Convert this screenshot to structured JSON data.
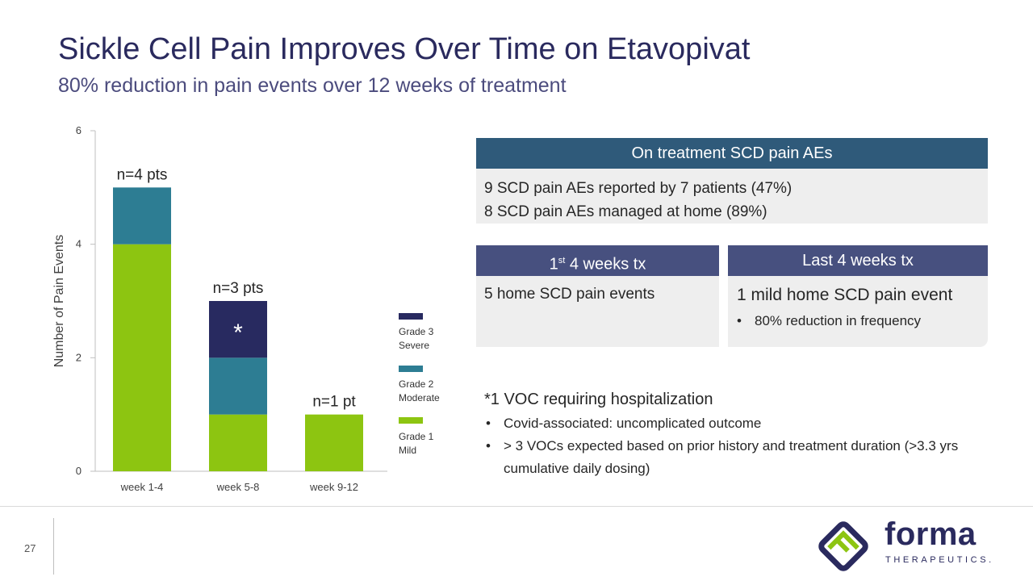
{
  "title": "Sickle Cell Pain Improves Over Time on Etavopivat",
  "subtitle": "80% reduction in pain events over 12 weeks of treatment",
  "chart_data": {
    "type": "bar",
    "stacked": true,
    "ylabel": "Number of Pain Events",
    "xlabel": "",
    "ylim": [
      0,
      6
    ],
    "yticks": [
      0,
      2,
      4,
      6
    ],
    "categories": [
      "week 1-4",
      "week 5-8",
      "week 9-12"
    ],
    "series": [
      {
        "name": "Grade 1 Mild",
        "legend_lines": [
          "Grade 1",
          "Mild"
        ],
        "color": "#8dc511",
        "values": [
          4,
          1,
          1
        ]
      },
      {
        "name": "Grade 2 Moderate",
        "legend_lines": [
          "Grade 2",
          "Moderate"
        ],
        "color": "#2d7d93",
        "values": [
          1,
          1,
          0
        ]
      },
      {
        "name": "Grade 3 Severe",
        "legend_lines": [
          "Grade 3",
          "Severe"
        ],
        "color": "#282a60",
        "values": [
          0,
          1,
          0
        ]
      }
    ],
    "bar_labels": [
      "n=4 pts",
      "n=3 pts",
      "n=1 pt"
    ],
    "annotations": [
      {
        "category": "week 5-8",
        "series": "Grade 3 Severe",
        "text": "*"
      }
    ]
  },
  "panel_summary": {
    "header": "On treatment SCD pain AEs",
    "lines": [
      "9 SCD pain AEs reported by 7 patients (47%)",
      "8 SCD pain AEs managed at home (89%)"
    ]
  },
  "panel_first": {
    "header_prefix": "1",
    "header_sup": "st",
    "header_suffix": " 4 weeks tx",
    "body": "5 home SCD pain events"
  },
  "panel_last": {
    "header": "Last 4 weeks tx",
    "main": "1 mild home SCD pain event",
    "bullet": "80% reduction in frequency"
  },
  "notes": {
    "title": "*1 VOC requiring hospitalization",
    "bullets": [
      "Covid-associated: uncomplicated outcome",
      "> 3 VOCs expected based on prior history and treatment duration (>3.3 yrs cumulative daily dosing)"
    ]
  },
  "footer": {
    "page_number": "27",
    "logo_word": "forma",
    "logo_sub": "THERAPEUTICS."
  },
  "colors": {
    "title": "#2a2a5e",
    "subtitle": "#4b4b7d",
    "header_dark": "#2f5a7a",
    "header_purple": "#47507f",
    "panel_bg": "#eeeeee",
    "logo_green": "#8dc511",
    "logo_navy": "#2a2a5e"
  }
}
